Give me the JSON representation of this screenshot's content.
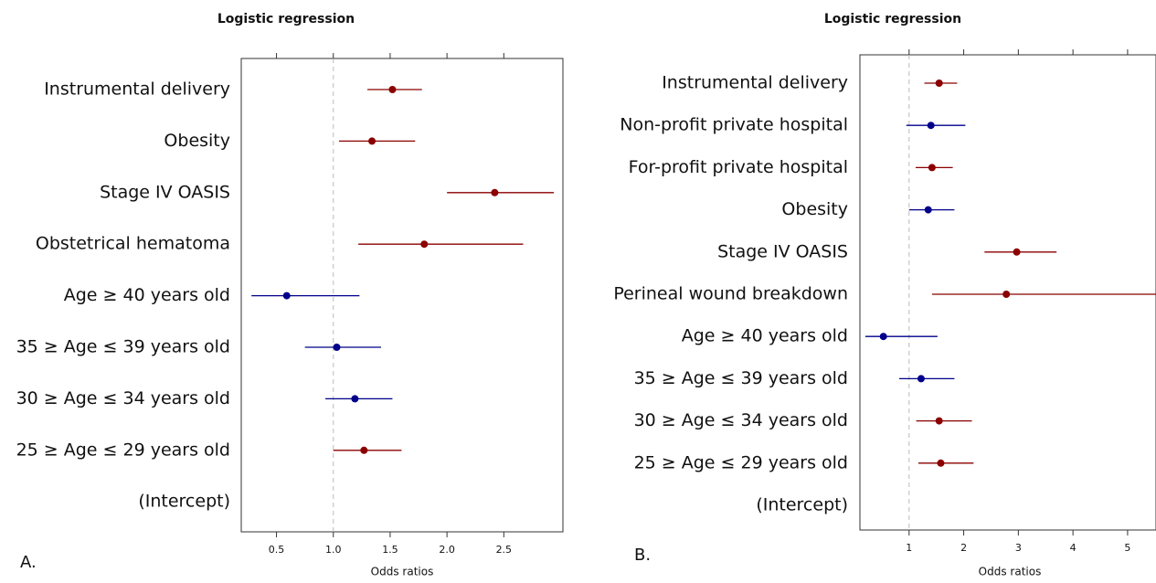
{
  "chart_data": [
    {
      "type": "forest",
      "title": "Logistic regression",
      "x_label": "Odds ratios",
      "panel_label": "A.",
      "categories": [
        "Instrumental delivery",
        "Obesity",
        "Stage IV OASIS",
        "Obstetrical hematoma",
        "Age ≥  40 years old",
        "35 ≥ Age ≤ 39 years old",
        "30 ≥ Age ≤ 34 years old",
        "25 ≥ Age ≤ 29 years old",
        "(Intercept)"
      ],
      "values": [
        1.52,
        1.34,
        2.42,
        1.8,
        0.59,
        1.03,
        1.19,
        1.27,
        null
      ],
      "lower": [
        1.3,
        1.05,
        2.0,
        1.22,
        0.28,
        0.75,
        0.93,
        1.0,
        null
      ],
      "upper": [
        1.78,
        1.72,
        2.94,
        2.67,
        1.23,
        1.42,
        1.52,
        1.6,
        null
      ],
      "colors": [
        "#8b0000",
        "#8b0000",
        "#8b0000",
        "#8b0000",
        "#00008b",
        "#00008b",
        "#00008b",
        "#8b0000",
        null
      ],
      "xlim": [
        0.19,
        3.02
      ],
      "xticks": [
        0.5,
        {
          "value": 1,
          "label": "1.0"
        },
        1.5,
        {
          "value": 2,
          "label": "2.0"
        },
        2.5
      ],
      "reference_line": 1
    },
    {
      "type": "forest",
      "title": "Logistic regression",
      "x_label": "Odds ratios",
      "panel_label": "B.",
      "categories": [
        "Instrumental delivery",
        "Non-profit private hospital",
        "For-profit private hospital",
        "Obesity",
        "Stage IV OASIS",
        "Perineal wound breakdown",
        "Age ≥  40 years old",
        "35 ≥ Age ≤ 39 years old",
        "30 ≥ Age ≤ 34 years old",
        "25 ≥ Age ≤ 29 years old",
        "(Intercept)"
      ],
      "values": [
        1.55,
        1.4,
        1.42,
        1.35,
        2.97,
        2.78,
        0.53,
        1.22,
        1.55,
        1.58,
        null
      ],
      "lower": [
        1.28,
        0.95,
        1.12,
        1.0,
        2.38,
        1.42,
        0.2,
        0.82,
        1.13,
        1.17,
        null
      ],
      "upper": [
        1.88,
        2.03,
        1.8,
        1.83,
        3.7,
        5.6,
        1.52,
        1.83,
        2.15,
        2.18,
        null
      ],
      "colors": [
        "#8b0000",
        "#00008b",
        "#8b0000",
        "#00008b",
        "#8b0000",
        "#8b0000",
        "#00008b",
        "#00008b",
        "#8b0000",
        "#8b0000",
        null
      ],
      "xlim": [
        0.1,
        5.52
      ],
      "xticks": [
        1,
        2,
        3,
        4,
        5
      ],
      "reference_line": 1
    }
  ]
}
